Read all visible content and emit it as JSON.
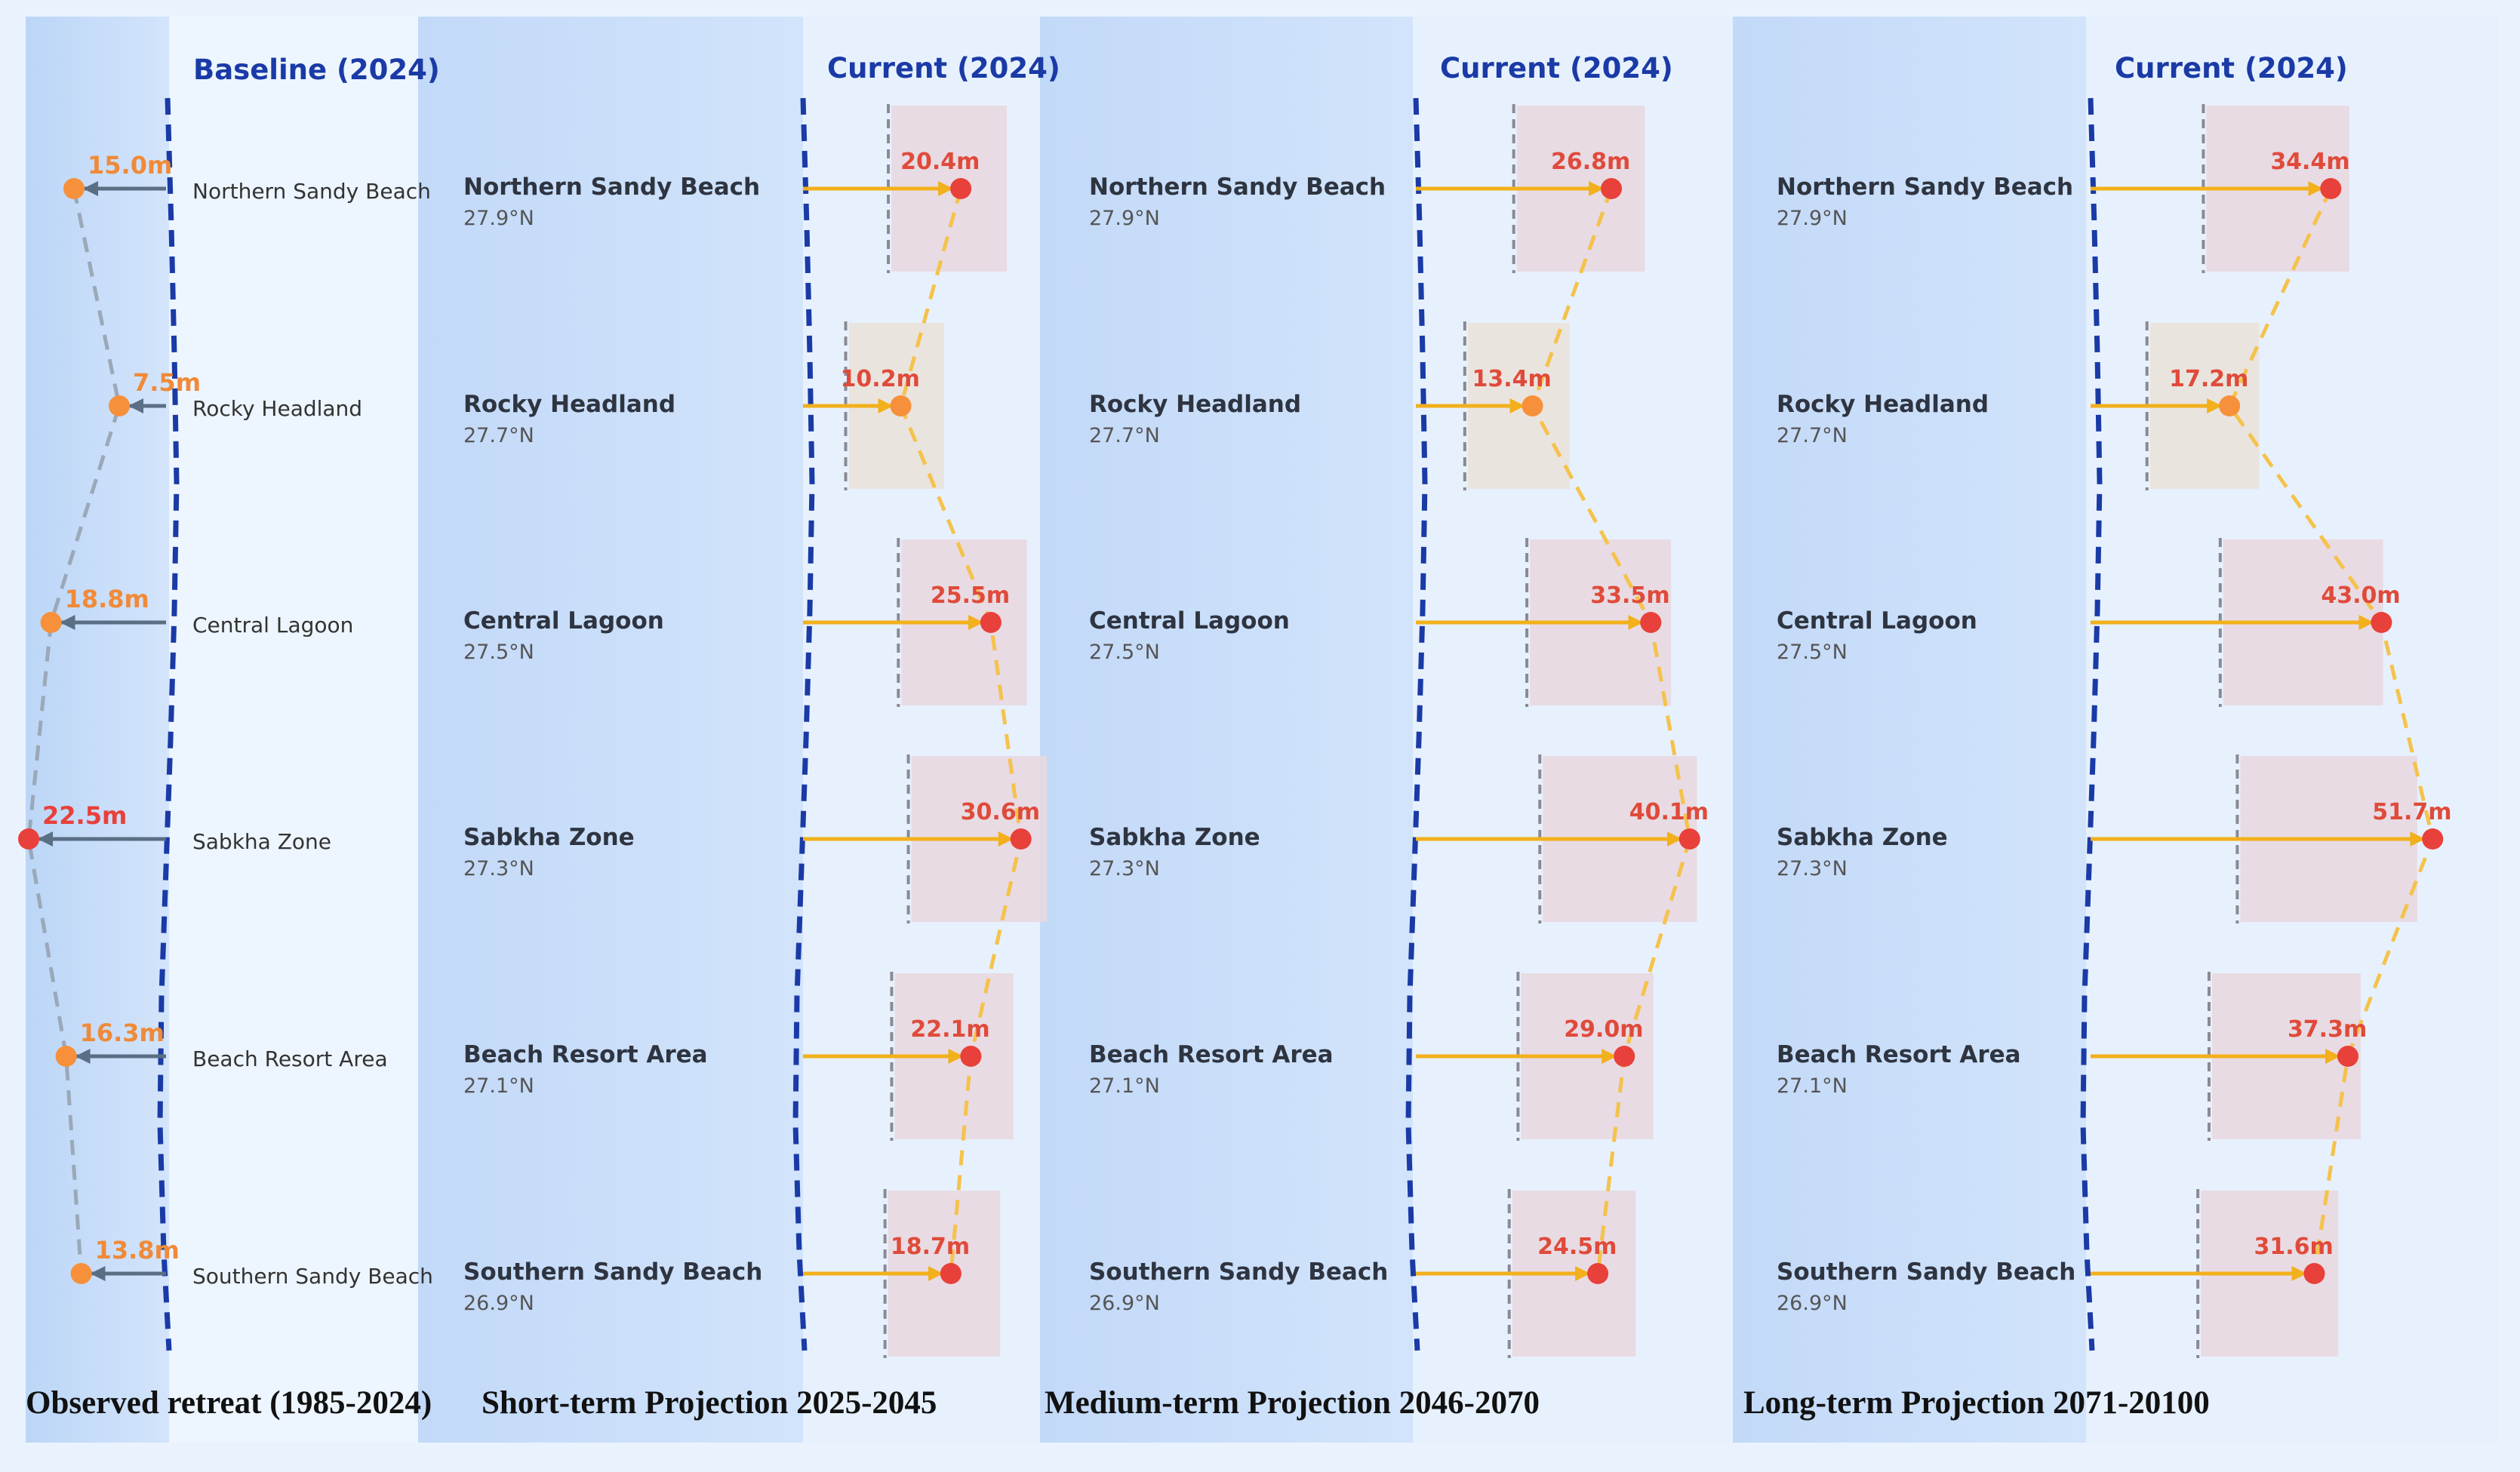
{
  "panels": [
    {
      "heading": "Baseline (2024)",
      "caption": "Observed retreat (1985-2024)",
      "values": [
        15.0,
        7.5,
        18.8,
        22.5,
        16.3,
        13.8
      ],
      "value_labels": [
        "15.0m",
        "7.5m",
        "18.8m",
        "22.5m",
        "16.3m",
        "13.8m"
      ]
    },
    {
      "heading": "Current (2024)",
      "caption": "Short-term Projection 2025-2045",
      "values": [
        20.4,
        10.2,
        25.5,
        30.6,
        22.1,
        18.7
      ],
      "value_labels": [
        "20.4m",
        "10.2m",
        "25.5m",
        "30.6m",
        "22.1m",
        "18.7m"
      ]
    },
    {
      "heading": "Current (2024)",
      "caption": "Medium-term Projection 2046-2070",
      "values": [
        26.8,
        13.4,
        33.5,
        40.1,
        29.0,
        24.5
      ],
      "value_labels": [
        "26.8m",
        "13.4m",
        "33.5m",
        "40.1m",
        "29.0m",
        "24.5m"
      ]
    },
    {
      "heading": "Current (2024)",
      "caption": "Long-term Projection 2071-20100",
      "values": [
        34.4,
        17.2,
        43.0,
        51.7,
        37.3,
        31.6
      ],
      "value_labels": [
        "34.4m",
        "17.2m",
        "43.0m",
        "51.7m",
        "37.3m",
        "31.6m"
      ]
    }
  ],
  "sites": [
    {
      "name": "Northern Sandy Beach",
      "lat": "27.9°N"
    },
    {
      "name": "Rocky Headland",
      "lat": "27.7°N"
    },
    {
      "name": "Central Lagoon",
      "lat": "27.5°N"
    },
    {
      "name": "Sabkha Zone",
      "lat": "27.3°N"
    },
    {
      "name": "Beach Resort Area",
      "lat": "27.1°N"
    },
    {
      "name": "Southern Sandy Beach",
      "lat": "26.9°N"
    }
  ],
  "colors": {
    "baseline": "#1a3aa6",
    "orange": "#f7903a",
    "red": "#e8403a",
    "arrow_observed": "#5a6e84",
    "arrow_projection": "#f2b01c",
    "connector_observed": "#9aa8b8",
    "connector_projection": "#f5c24c",
    "label_projection": "#e04a3a",
    "label_observed": "#f08a38",
    "box_high": "#e8d8e0",
    "box_low": "#eae2dc"
  },
  "chart_data": [
    {
      "type": "scatter",
      "title": "Observed retreat (1985-2024)",
      "categories": [
        "Northern Sandy Beach",
        "Rocky Headland",
        "Central Lagoon",
        "Sabkha Zone",
        "Beach Resort Area",
        "Southern Sandy Beach"
      ],
      "series": [
        {
          "values": [
            15.0,
            7.5,
            18.8,
            22.5,
            16.3,
            13.8
          ]
        }
      ]
    },
    {
      "type": "scatter",
      "title": "Short-term Projection 2025-2045",
      "categories": [
        "Northern Sandy Beach",
        "Rocky Headland",
        "Central Lagoon",
        "Sabkha Zone",
        "Beach Resort Area",
        "Southern Sandy Beach"
      ],
      "series": [
        {
          "values": [
            20.4,
            10.2,
            25.5,
            30.6,
            22.1,
            18.7
          ]
        }
      ]
    },
    {
      "type": "scatter",
      "title": "Medium-term Projection 2046-2070",
      "categories": [
        "Northern Sandy Beach",
        "Rocky Headland",
        "Central Lagoon",
        "Sabkha Zone",
        "Beach Resort Area",
        "Southern Sandy Beach"
      ],
      "series": [
        {
          "values": [
            26.8,
            13.4,
            33.5,
            40.1,
            29.0,
            24.5
          ]
        }
      ]
    },
    {
      "type": "scatter",
      "title": "Long-term Projection 2071-20100",
      "categories": [
        "Northern Sandy Beach",
        "Rocky Headland",
        "Central Lagoon",
        "Sabkha Zone",
        "Beach Resort Area",
        "Southern Sandy Beach"
      ],
      "series": [
        {
          "values": [
            34.4,
            17.2,
            43.0,
            51.7,
            37.3,
            31.6
          ]
        }
      ]
    }
  ]
}
